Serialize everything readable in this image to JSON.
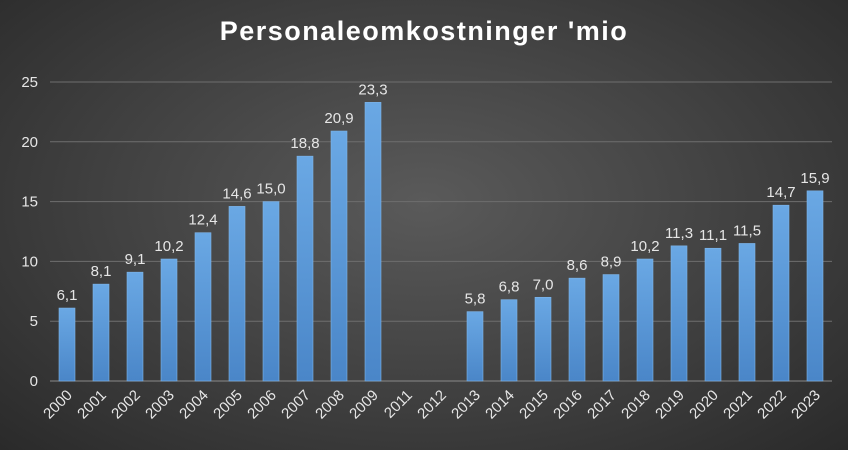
{
  "chart_data": {
    "type": "bar",
    "title": "Personaleomkostninger 'mio",
    "xlabel": "",
    "ylabel": "",
    "ylim": [
      0,
      25
    ],
    "yticks": [
      0,
      5,
      10,
      15,
      20,
      25
    ],
    "grid": true,
    "legend": "none",
    "bar_color": "#5b9bd5",
    "categories": [
      "2000",
      "2001",
      "2002",
      "2003",
      "2004",
      "2005",
      "2006",
      "2007",
      "2008",
      "2009",
      "2011",
      "2012",
      "2013",
      "2014",
      "2015",
      "2016",
      "2017",
      "2018",
      "2019",
      "2020",
      "2021",
      "2022",
      "2023"
    ],
    "values": [
      6.1,
      8.1,
      9.1,
      10.2,
      12.4,
      14.6,
      15.0,
      18.8,
      20.9,
      23.3,
      null,
      null,
      5.8,
      6.8,
      7.0,
      8.6,
      8.9,
      10.2,
      11.3,
      11.1,
      11.5,
      14.7,
      15.9
    ],
    "data_labels": [
      "6,1",
      "8,1",
      "9,1",
      "10,2",
      "12,4",
      "14,6",
      "15,0",
      "18,8",
      "20,9",
      "23,3",
      "",
      "",
      "5,8",
      "6,8",
      "7,0",
      "8,6",
      "8,9",
      "10,2",
      "11,3",
      "11,1",
      "11,5",
      "14,7",
      "15,9"
    ]
  }
}
